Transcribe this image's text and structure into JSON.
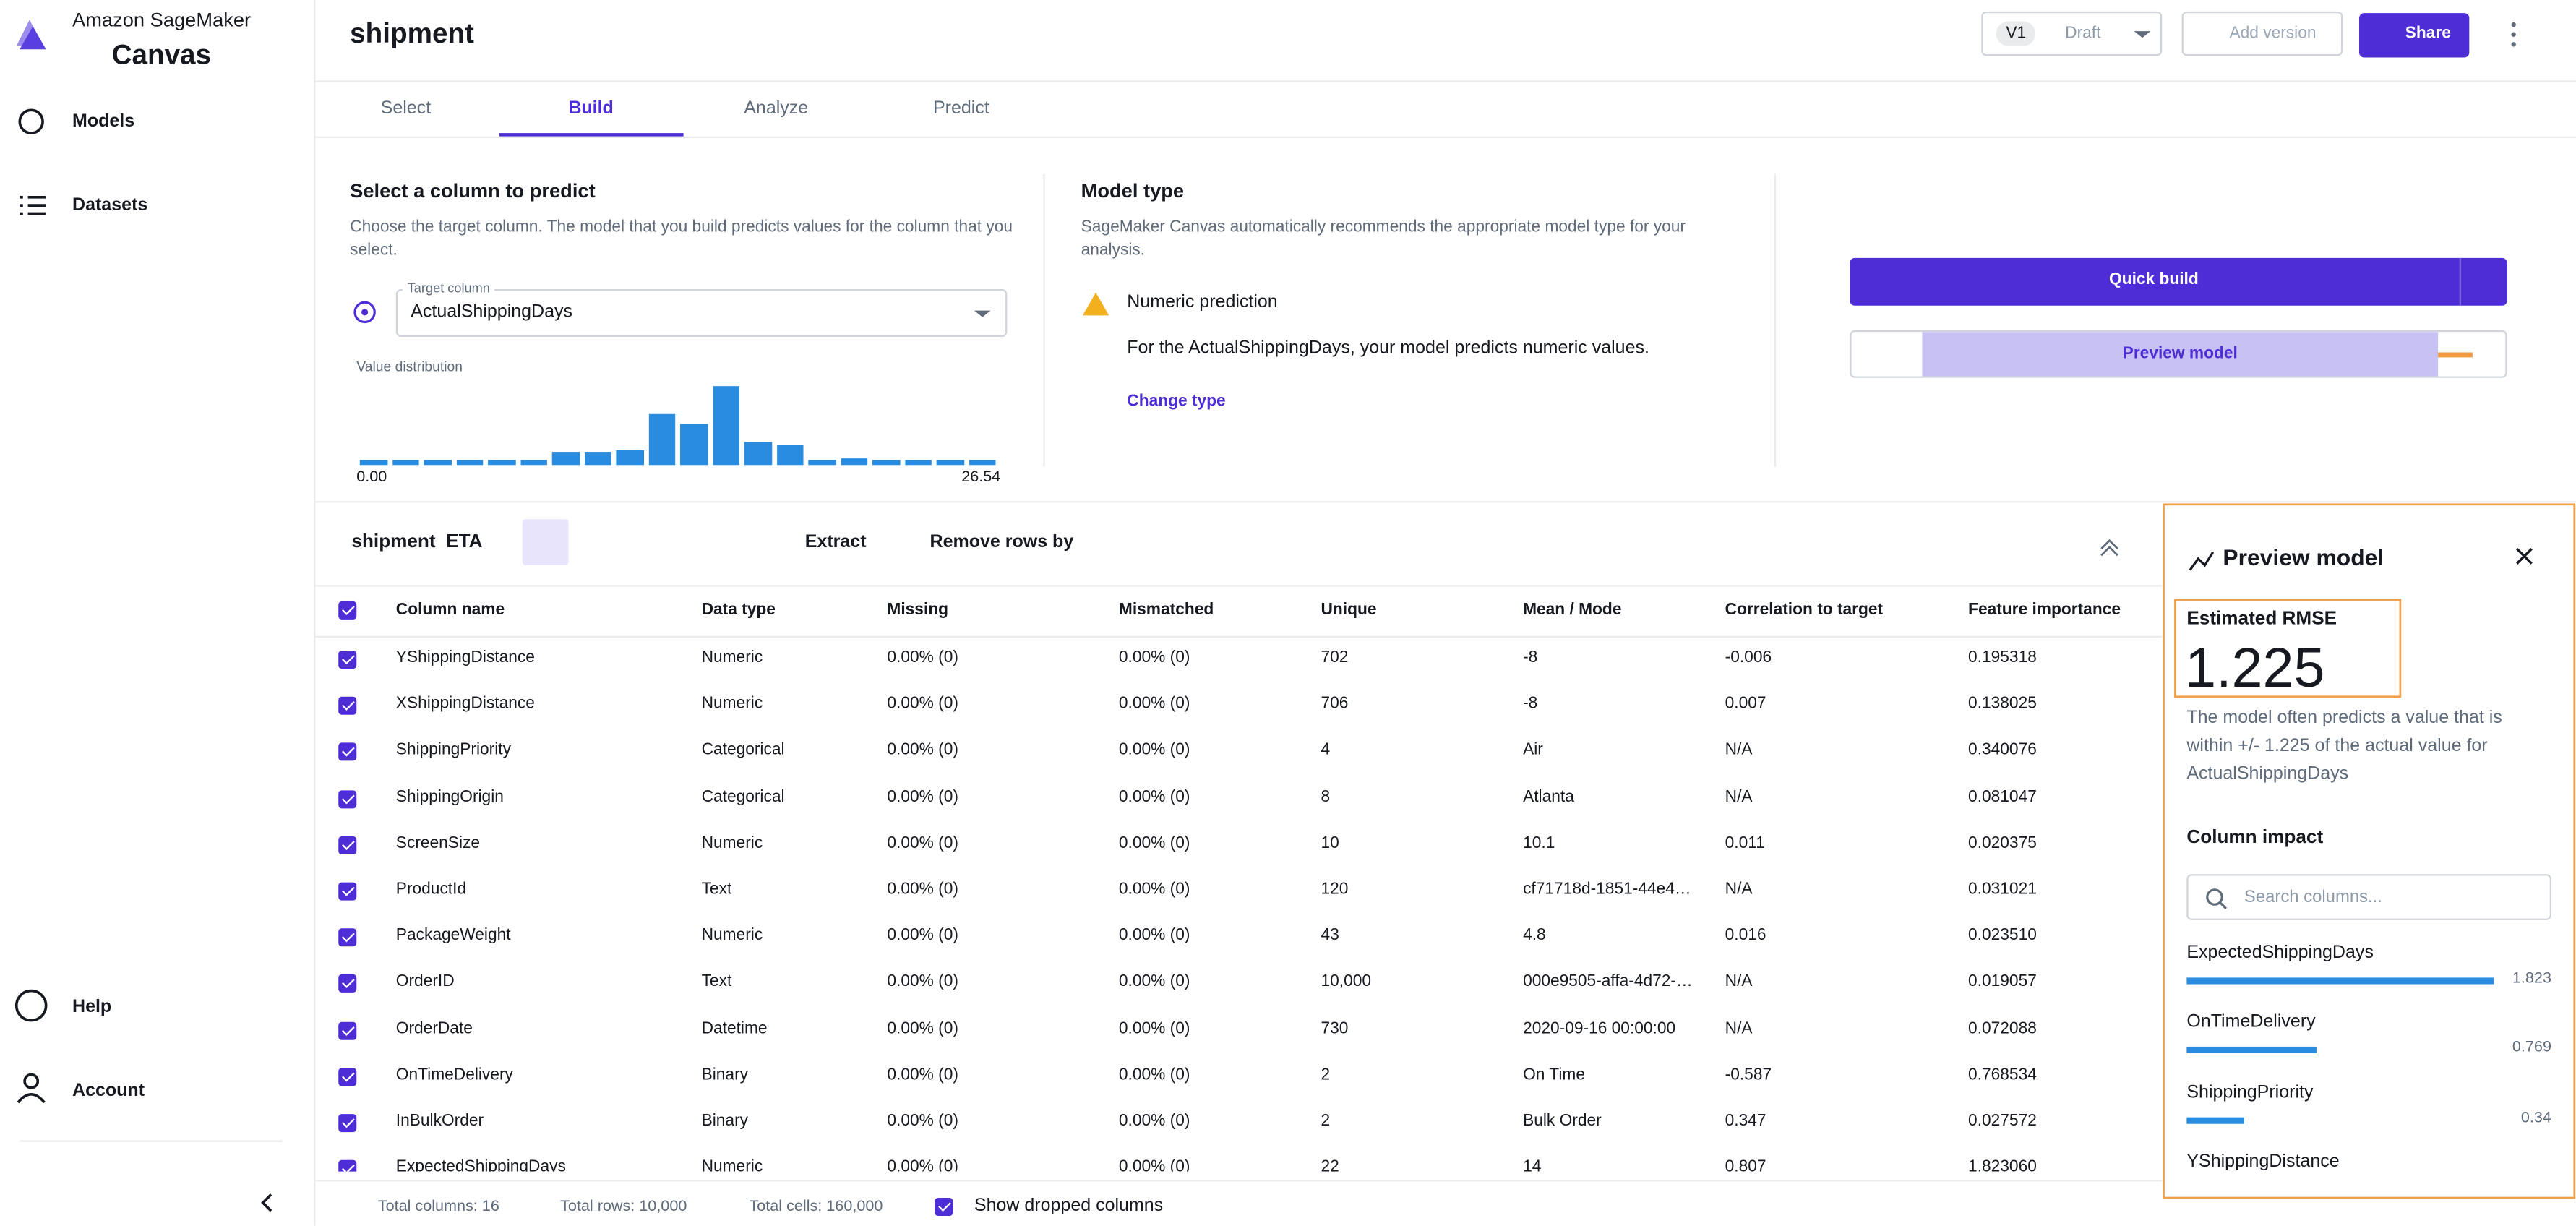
{
  "sidebar": {
    "brand_line1": "Amazon SageMaker",
    "brand_line2": "Canvas",
    "nav": [
      "Models",
      "Datasets"
    ],
    "bottom_nav": [
      "Help",
      "Account"
    ]
  },
  "header": {
    "title": "shipment",
    "version": "V1",
    "status": "Draft",
    "add_version": "Add version",
    "share": "Share"
  },
  "tabs": [
    "Select",
    "Build",
    "Analyze",
    "Predict"
  ],
  "target": {
    "heading": "Select a column to predict",
    "description": "Choose the target column. The model that you build predicts values for the column that you select.",
    "field_label": "Target column",
    "field_value": "ActualShippingDays",
    "distribution_label": "Value distribution",
    "histogram": {
      "values": [
        3,
        3,
        3,
        3,
        3,
        3,
        8,
        8,
        9,
        30,
        24,
        47,
        14,
        12,
        3,
        4,
        3,
        3,
        3,
        3
      ],
      "min_label": "0.00",
      "max_label": "26.54"
    }
  },
  "model_type": {
    "heading": "Model type",
    "description": "SageMaker Canvas automatically recommends the appropriate model type for your analysis.",
    "prediction": "Numeric prediction",
    "explanation": "For the ActualShippingDays, your model predicts numeric values.",
    "change": "Change type"
  },
  "actions": {
    "quick_build": "Quick build",
    "preview": "Preview model"
  },
  "table": {
    "dataset": "shipment_ETA",
    "extract": "Extract",
    "remove_rows": "Remove rows by",
    "headers": [
      "Column name",
      "Data type",
      "Missing",
      "Mismatched",
      "Unique",
      "Mean / Mode",
      "Correlation to target",
      "Feature importance"
    ],
    "rows": [
      [
        "YShippingDistance",
        "Numeric",
        "0.00% (0)",
        "0.00% (0)",
        "702",
        "-8",
        "-0.006",
        "0.195318"
      ],
      [
        "XShippingDistance",
        "Numeric",
        "0.00% (0)",
        "0.00% (0)",
        "706",
        "-8",
        "0.007",
        "0.138025"
      ],
      [
        "ShippingPriority",
        "Categorical",
        "0.00% (0)",
        "0.00% (0)",
        "4",
        "Air",
        "N/A",
        "0.340076"
      ],
      [
        "ShippingOrigin",
        "Categorical",
        "0.00% (0)",
        "0.00% (0)",
        "8",
        "Atlanta",
        "N/A",
        "0.081047"
      ],
      [
        "ScreenSize",
        "Numeric",
        "0.00% (0)",
        "0.00% (0)",
        "10",
        "10.1",
        "0.011",
        "0.020375"
      ],
      [
        "ProductId",
        "Text",
        "0.00% (0)",
        "0.00% (0)",
        "120",
        "cf71718d-1851-44e4…",
        "N/A",
        "0.031021"
      ],
      [
        "PackageWeight",
        "Numeric",
        "0.00% (0)",
        "0.00% (0)",
        "43",
        "4.8",
        "0.016",
        "0.023510"
      ],
      [
        "OrderID",
        "Text",
        "0.00% (0)",
        "0.00% (0)",
        "10,000",
        "000e9505-affa-4d72-…",
        "N/A",
        "0.019057"
      ],
      [
        "OrderDate",
        "Datetime",
        "0.00% (0)",
        "0.00% (0)",
        "730",
        "2020-09-16 00:00:00",
        "N/A",
        "0.072088"
      ],
      [
        "OnTimeDelivery",
        "Binary",
        "0.00% (0)",
        "0.00% (0)",
        "2",
        "On Time",
        "-0.587",
        "0.768534"
      ],
      [
        "InBulkOrder",
        "Binary",
        "0.00% (0)",
        "0.00% (0)",
        "2",
        "Bulk Order",
        "0.347",
        "0.027572"
      ],
      [
        "ExpectedShippingDays",
        "Numeric",
        "0.00% (0)",
        "0.00% (0)",
        "22",
        "14",
        "0.807",
        "1.823060"
      ]
    ],
    "footer": [
      "Total columns: 16",
      "Total rows: 10,000",
      "Total cells: 160,000"
    ],
    "show_dropped": "Show dropped columns"
  },
  "preview": {
    "title": "Preview model",
    "metric_label": "Estimated RMSE",
    "metric_value": "1.225",
    "description": "The model often predicts a value that is within +/- 1.225 of the actual value for ActualShippingDays",
    "impact_heading": "Column impact",
    "search_placeholder": "Search columns...",
    "impacts": [
      {
        "name": "ExpectedShippingDays",
        "value": 1.823
      },
      {
        "name": "OnTimeDelivery",
        "value": 0.769
      },
      {
        "name": "ShippingPriority",
        "value": 0.34
      },
      {
        "name": "YShippingDistance",
        "value": null
      }
    ]
  }
}
